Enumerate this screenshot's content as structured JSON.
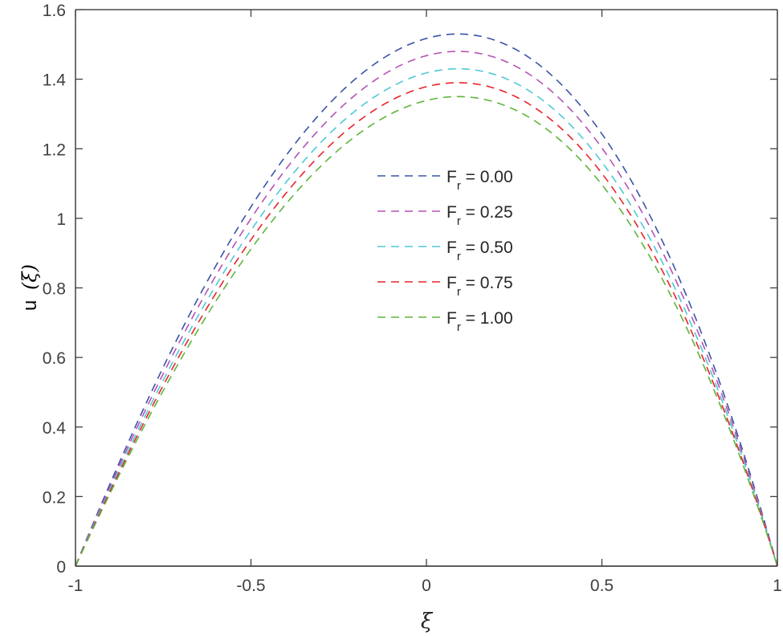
{
  "chart_data": {
    "type": "line",
    "title": "",
    "xlabel": "ξ",
    "ylabel": "u (ξ)",
    "xlim": [
      -1,
      1
    ],
    "ylim": [
      0,
      1.6
    ],
    "xticks": [
      -1,
      -0.5,
      0,
      0.5,
      1
    ],
    "xtick_labels": [
      "-1",
      "-0.5",
      "0",
      "0.5",
      "1"
    ],
    "yticks": [
      0,
      0.2,
      0.4,
      0.6,
      0.8,
      1,
      1.2,
      1.4,
      1.6
    ],
    "ytick_labels": [
      "0",
      "0.2",
      "0.4",
      "0.6",
      "0.8",
      "1",
      "1.2",
      "1.4",
      "1.6"
    ],
    "grid": false,
    "legend_position": "center-top (inside)",
    "line_style": "dashed",
    "x": [
      -1,
      -0.9,
      -0.8,
      -0.7,
      -0.6,
      -0.5,
      -0.4,
      -0.3,
      -0.2,
      -0.1,
      0,
      0.09,
      0.2,
      0.3,
      0.4,
      0.5,
      0.6,
      0.7,
      0.8,
      0.9,
      1
    ],
    "series": [
      {
        "name": "F_r = 0.00",
        "color": "#3b54a6",
        "peak": 1.53,
        "values": [
          0,
          0.25,
          0.46,
          0.66,
          0.83,
          0.98,
          1.11,
          1.23,
          1.33,
          1.41,
          1.52,
          1.53,
          1.49,
          1.43,
          1.35,
          1.21,
          1.04,
          0.83,
          0.59,
          0.32,
          0
        ]
      },
      {
        "name": "F_r = 0.25",
        "color": "#b553b5",
        "peak": 1.48,
        "values": [
          0,
          0.24,
          0.45,
          0.64,
          0.81,
          0.95,
          1.08,
          1.19,
          1.29,
          1.37,
          1.47,
          1.48,
          1.44,
          1.38,
          1.31,
          1.17,
          1.01,
          0.81,
          0.58,
          0.31,
          0
        ]
      },
      {
        "name": "F_r = 0.50",
        "color": "#4ec9d6",
        "peak": 1.43,
        "values": [
          0,
          0.23,
          0.43,
          0.62,
          0.78,
          0.92,
          1.04,
          1.15,
          1.24,
          1.32,
          1.42,
          1.43,
          1.39,
          1.34,
          1.26,
          1.13,
          0.97,
          0.78,
          0.56,
          0.3,
          0
        ]
      },
      {
        "name": "F_r = 0.75",
        "color": "#e8252b",
        "peak": 1.39,
        "values": [
          0,
          0.22,
          0.42,
          0.6,
          0.76,
          0.89,
          1.01,
          1.12,
          1.21,
          1.29,
          1.38,
          1.39,
          1.35,
          1.3,
          1.23,
          1.1,
          0.95,
          0.76,
          0.54,
          0.29,
          0
        ]
      },
      {
        "name": "F_r = 1.00",
        "color": "#5fb53c",
        "peak": 1.35,
        "values": [
          0,
          0.22,
          0.41,
          0.58,
          0.74,
          0.87,
          0.98,
          1.09,
          1.17,
          1.25,
          1.34,
          1.35,
          1.31,
          1.26,
          1.19,
          1.07,
          0.92,
          0.74,
          0.53,
          0.28,
          0
        ]
      }
    ],
    "peak_x": 0.09
  },
  "legend": {
    "items": [
      {
        "main": "F",
        "sub": "r",
        "rest": " = 0.00"
      },
      {
        "main": "F",
        "sub": "r",
        "rest": " = 0.25"
      },
      {
        "main": "F",
        "sub": "r",
        "rest": " = 0.50"
      },
      {
        "main": "F",
        "sub": "r",
        "rest": " = 0.75"
      },
      {
        "main": "F",
        "sub": "r",
        "rest": " = 1.00"
      }
    ]
  },
  "axes": {
    "xlabel": "ξ",
    "ylabel_main": "u",
    "ylabel_arg": "(ξ)"
  }
}
